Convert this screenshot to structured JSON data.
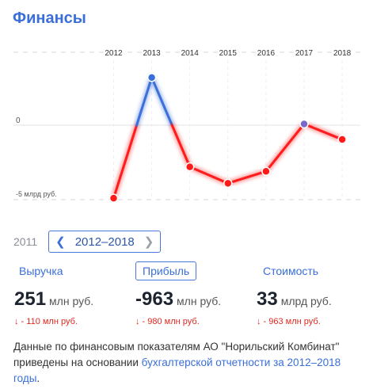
{
  "title": "Финансы",
  "chart_data": {
    "type": "line",
    "categories": [
      "2012",
      "2013",
      "2014",
      "2015",
      "2016",
      "2017",
      "2018"
    ],
    "x": [
      "2012",
      "2013",
      "2014",
      "2015",
      "2016",
      "2017",
      "2018"
    ],
    "series": [
      {
        "values": [
          -4.9,
          3.2,
          -2.8,
          -3.9,
          -3.1,
          0.08,
          -0.96
        ]
      }
    ],
    "y_tick_labels": [
      "0",
      "-5 млрд руб."
    ],
    "ylim": [
      -5.5,
      4.5
    ],
    "grid": true,
    "colors": {
      "negative": "#ff1a1a",
      "positive": "#3a6fd8",
      "peak_marker": "#3a6fd8",
      "last_positive_marker": "#7a68c8"
    }
  },
  "period": {
    "prev_year": "2011",
    "label": "2012–2018"
  },
  "metrics": [
    {
      "label": "Выручка",
      "value": "251",
      "unit": "млн руб.",
      "change": "↓ - 110 млн руб."
    },
    {
      "label": "Прибыль",
      "value": "-963",
      "unit": "млн руб.",
      "change": "↓ - 980 млн руб."
    },
    {
      "label": "Стоимость",
      "value": "33",
      "unit": "млрд руб.",
      "change": "↓ - 963 млн руб."
    }
  ],
  "note": {
    "text": "Данные по финансовым показателям АО \"Норильский Комбинат\" приведены на основании ",
    "link": "бухгалтерской отчетности за 2012–2018 годы",
    "end": "."
  }
}
